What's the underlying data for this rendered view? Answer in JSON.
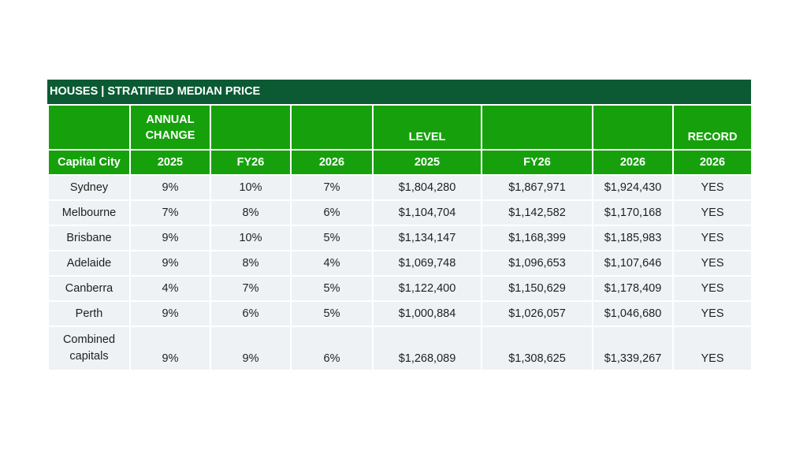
{
  "chart_data": {
    "type": "table",
    "title": "HOUSES | STRATIFIED MEDIAN PRICE",
    "group_headers": {
      "annual_change": "ANNUAL CHANGE",
      "level": "LEVEL",
      "record": "RECORD"
    },
    "columns": [
      "Capital City",
      "2025",
      "FY26",
      "2026",
      "2025",
      "FY26",
      "2026",
      "2026"
    ],
    "rows": [
      [
        "Sydney",
        "9%",
        "10%",
        "7%",
        "$1,804,280",
        "$1,867,971",
        "$1,924,430",
        "YES"
      ],
      [
        "Melbourne",
        "7%",
        "8%",
        "6%",
        "$1,104,704",
        "$1,142,582",
        "$1,170,168",
        "YES"
      ],
      [
        "Brisbane",
        "9%",
        "10%",
        "5%",
        "$1,134,147",
        "$1,168,399",
        "$1,185,983",
        "YES"
      ],
      [
        "Adelaide",
        "9%",
        "8%",
        "4%",
        "$1,069,748",
        "$1,096,653",
        "$1,107,646",
        "YES"
      ],
      [
        "Canberra",
        "4%",
        "7%",
        "5%",
        "$1,122,400",
        "$1,150,629",
        "$1,178,409",
        "YES"
      ],
      [
        "Perth",
        "9%",
        "6%",
        "5%",
        "$1,000,884",
        "$1,026,057",
        "$1,046,680",
        "YES"
      ],
      [
        "Combined capitals",
        "9%",
        "9%",
        "6%",
        "$1,268,089",
        "$1,308,625",
        "$1,339,267",
        "YES"
      ]
    ]
  },
  "colors": {
    "title_bg": "#0b5a34",
    "header_bg": "#16a10c",
    "row_bg": "#eff2f4"
  }
}
